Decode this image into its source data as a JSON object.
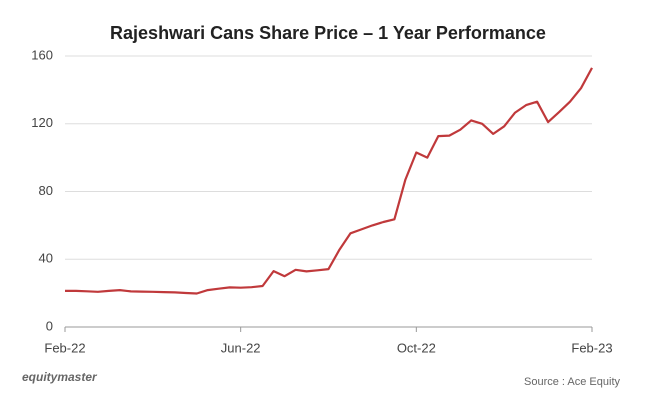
{
  "chart_data": {
    "type": "line",
    "title": "Rajeshwari Cans Share Price – 1 Year Performance",
    "categories": [
      "Feb-22",
      null,
      null,
      null,
      null,
      null,
      null,
      null,
      null,
      null,
      null,
      null,
      null,
      null,
      null,
      null,
      "Jun-22",
      null,
      null,
      null,
      null,
      null,
      null,
      null,
      null,
      null,
      null,
      null,
      null,
      null,
      null,
      null,
      "Oct-22",
      null,
      null,
      null,
      null,
      null,
      null,
      null,
      null,
      null,
      null,
      null,
      null,
      null,
      null,
      null,
      "Feb-23"
    ],
    "series": [
      {
        "name": "Rajeshwari Cans",
        "color": "#c0393b",
        "values": [
          21.3,
          21.3,
          21.1,
          20.8,
          21.3,
          21.8,
          21.0,
          20.9,
          20.8,
          20.6,
          20.4,
          20.1,
          19.8,
          21.8,
          22.6,
          23.4,
          23.2,
          23.5,
          24.2,
          33,
          30,
          33.8,
          32.8,
          33.5,
          34.2,
          45.7,
          55.3,
          57.6,
          60,
          62,
          63.6,
          87,
          103,
          100,
          112.7,
          113,
          116.5,
          122,
          120,
          114,
          118.5,
          126.6,
          131,
          133,
          121,
          126.9,
          133,
          141,
          153
        ]
      }
    ],
    "ylim": [
      0,
      160
    ],
    "yticks": [
      0,
      40,
      80,
      120,
      160
    ],
    "grid": true,
    "brand": "equitymaster",
    "source": "Source : Ace Equity"
  }
}
